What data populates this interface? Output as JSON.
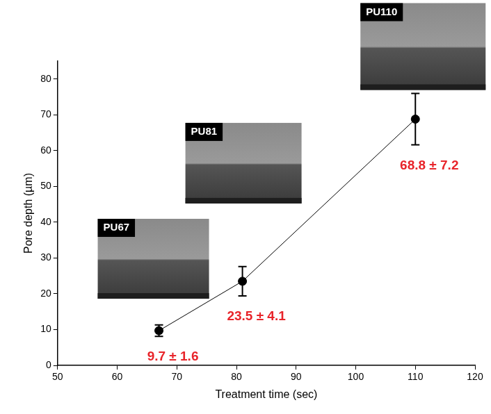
{
  "chart_data": {
    "type": "line",
    "x_label": "Treatment time (sec)",
    "y_label": "Pore depth (µm)",
    "x": [
      67,
      81,
      110
    ],
    "values": [
      9.7,
      23.5,
      68.8
    ],
    "errors": [
      1.6,
      4.1,
      7.2
    ],
    "value_labels": [
      "9.7 ± 1.6",
      "23.5 ± 4.1",
      "68.8 ± 7.2"
    ],
    "data_labels": true,
    "annotations": [
      "PU67",
      "PU81",
      "PU110"
    ],
    "color": "#000000",
    "marker": "circle",
    "line_style": "solid",
    "xlim": [
      50,
      120
    ],
    "xticks": [
      50,
      60,
      70,
      80,
      90,
      100,
      110,
      120
    ],
    "ylim": [
      0,
      85
    ],
    "yticks": [
      0,
      10,
      20,
      30,
      40,
      50,
      60,
      70,
      80
    ],
    "grid": false
  }
}
